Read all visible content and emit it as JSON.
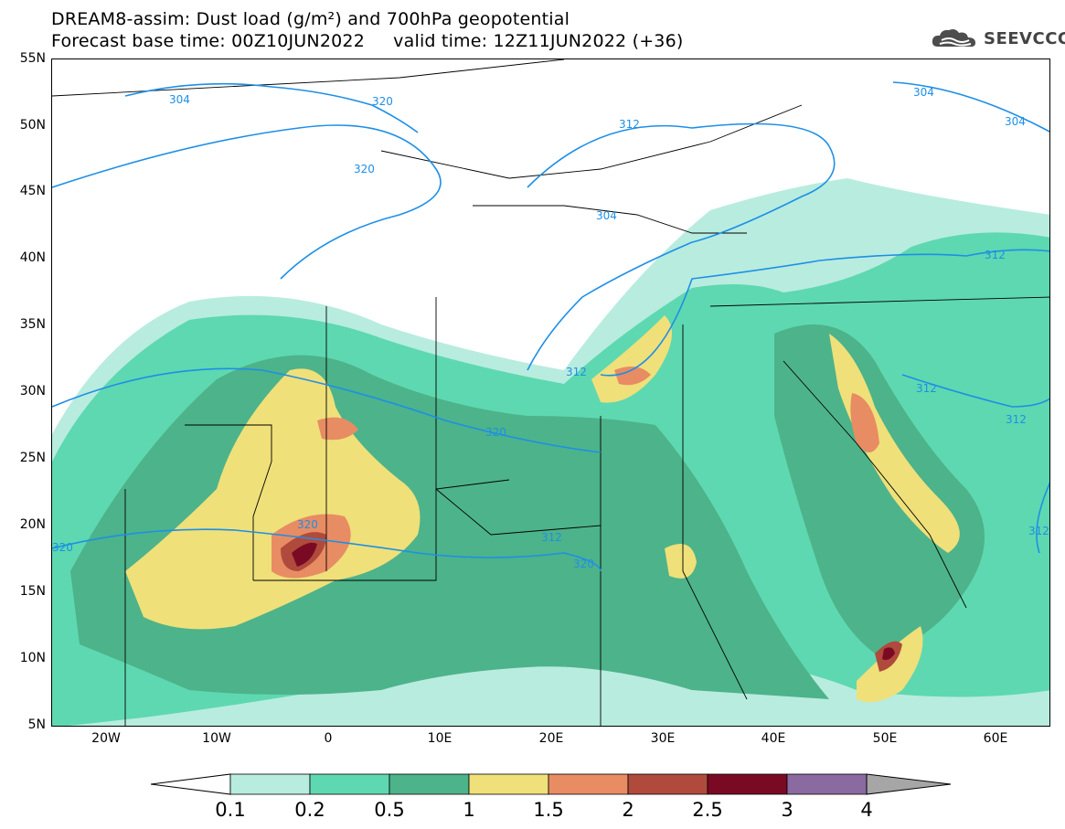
{
  "header": {
    "line1": "DREAM8-assim: Dust load (g/m²) and 700hPa geopotential",
    "line2": "Forecast base time: 00Z10JUN2022     valid time: 12Z11JUN2022 (+36)"
  },
  "logo": {
    "text": "SEEVCCC",
    "icon": "cloud-logo-icon"
  },
  "axes": {
    "lat_ticks": [
      "55N",
      "50N",
      "45N",
      "40N",
      "35N",
      "30N",
      "25N",
      "20N",
      "15N",
      "10N",
      "5N"
    ],
    "lon_ticks": [
      "20W",
      "10W",
      "0",
      "10E",
      "20E",
      "30E",
      "40E",
      "50E",
      "60E"
    ]
  },
  "contours": {
    "labels": [
      "304",
      "312",
      "320",
      "304",
      "312",
      "320",
      "320",
      "320",
      "312",
      "320",
      "304",
      "304",
      "312",
      "312",
      "312",
      "312",
      "320"
    ]
  },
  "colorbar": {
    "levels": [
      "0.1",
      "0.2",
      "0.5",
      "1",
      "1.5",
      "2",
      "2.5",
      "3",
      "4"
    ],
    "colors": [
      "#ffffff",
      "#b8ecdf",
      "#5ed8b0",
      "#4db38a",
      "#efe07a",
      "#e88c63",
      "#b04a3c",
      "#7a0a24",
      "#8a6aa0",
      "#a6a6a6"
    ]
  },
  "palette": {
    "contour": "#1e8fe6",
    "border": "#000000",
    "dust_light": "#b8ecdf",
    "dust_mid": "#5ed8b0",
    "dust_dark": "#4db38a",
    "dust_yellow": "#efe07a",
    "dust_orange": "#e88c63",
    "dust_red": "#b04a3c",
    "dust_maroon": "#7a0a24"
  }
}
